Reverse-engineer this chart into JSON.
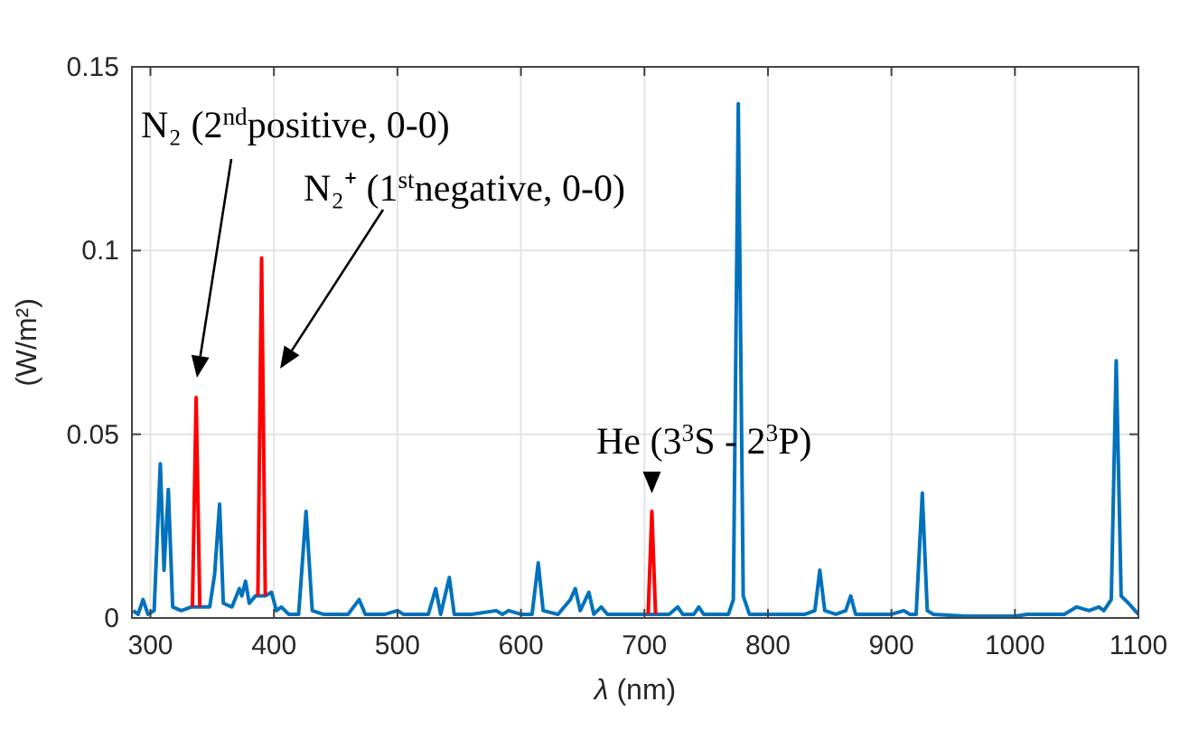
{
  "chart_data": {
    "type": "line",
    "xlabel": "λ (nm)",
    "ylabel": "(W/m²)",
    "xlim": [
      285,
      1100
    ],
    "xticks": [
      300,
      400,
      500,
      600,
      700,
      800,
      900,
      1000,
      1100
    ],
    "ylim": [
      0,
      0.15
    ],
    "yticks": [
      0,
      0.05,
      0.1,
      0.15
    ],
    "grid": true,
    "marker": "none",
    "line_style": "solid",
    "series": [
      {
        "color": "#0072bd",
        "x": [
          286,
          290,
          294,
          298,
          303,
          308,
          311,
          314.5,
          318,
          325,
          333,
          337,
          341,
          348,
          352,
          356,
          359,
          366,
          372,
          374,
          377,
          380,
          385,
          389,
          393,
          398,
          402,
          406,
          412,
          420,
          426,
          431,
          440,
          460,
          469,
          474,
          490,
          500,
          505,
          525,
          531,
          535,
          542,
          546,
          560,
          580,
          585,
          590,
          600,
          609,
          614,
          618,
          630,
          640,
          644,
          648,
          655,
          659,
          665,
          670,
          690,
          701,
          706,
          710,
          720,
          727,
          731,
          740,
          744,
          748,
          768,
          772,
          776,
          780,
          785,
          800,
          830,
          838,
          842,
          846,
          855,
          863,
          867,
          871,
          880,
          900,
          910,
          915,
          920,
          925,
          929,
          934,
          960,
          1000,
          1010,
          1040,
          1050,
          1060,
          1068,
          1072,
          1078,
          1082,
          1086,
          1092,
          1100
        ],
        "values": [
          0.002,
          0.001,
          0.005,
          0.001,
          0.002,
          0.042,
          0.013,
          0.035,
          0.003,
          0.002,
          0.003,
          0.003,
          0.003,
          0.003,
          0.012,
          0.031,
          0.004,
          0.003,
          0.008,
          0.006,
          0.01,
          0.004,
          0.006,
          0.006,
          0.006,
          0.007,
          0.002,
          0.003,
          0.001,
          0.001,
          0.029,
          0.002,
          0.001,
          0.001,
          0.005,
          0.001,
          0.001,
          0.002,
          0.001,
          0.001,
          0.008,
          0.001,
          0.011,
          0.001,
          0.001,
          0.002,
          0.001,
          0.002,
          0.001,
          0.001,
          0.015,
          0.002,
          0.001,
          0.005,
          0.008,
          0.002,
          0.007,
          0.001,
          0.003,
          0.001,
          0.001,
          0.001,
          0.001,
          0.001,
          0.001,
          0.003,
          0.001,
          0.001,
          0.003,
          0.001,
          0.001,
          0.005,
          0.14,
          0.006,
          0.001,
          0.001,
          0.001,
          0.002,
          0.013,
          0.002,
          0.001,
          0.002,
          0.006,
          0.001,
          0.001,
          0.001,
          0.002,
          0.001,
          0.001,
          0.034,
          0.002,
          0.001,
          0.0005,
          0.0005,
          0.001,
          0.001,
          0.003,
          0.002,
          0.003,
          0.002,
          0.005,
          0.07,
          0.006,
          0.004,
          0.001
        ]
      },
      {
        "color": "#ff0000",
        "x": [
          334,
          337,
          340,
          362,
          387,
          390,
          393,
          550,
          703,
          706,
          709
        ],
        "values": [
          0.003,
          0.06,
          0.003,
          null,
          0.006,
          0.098,
          0.006,
          null,
          0.001,
          0.029,
          0.001
        ]
      }
    ],
    "annotations": [
      "N₂ (2$^{nd}$positive, 0-0)",
      "N₂⁺ (1$^{st}$negative, 0-0)",
      {
        "text": "He (3$^{3}$S - 2$^{3}$P)",
        "x": 706,
        "y": 0.029
      }
    ]
  }
}
